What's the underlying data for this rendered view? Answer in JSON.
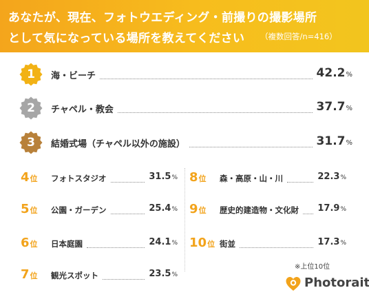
{
  "header": {
    "title_line1": "あなたが、現在、フォトウエディング・前撮りの撮影場所",
    "title_line2": "として気になっている場所を教えてください",
    "subtitle": "（複数回答/n=416）"
  },
  "colors": {
    "header_orange": "#f4a51c",
    "gold": "#f2b215",
    "silver": "#a6a6a6",
    "bronze": "#b8813a",
    "rank_orange": "#f2a31b"
  },
  "rank_position_suffix": "位",
  "percent_sign": "%",
  "chart_data": {
    "type": "table",
    "categories": [
      "海・ビーチ",
      "チャペル・教会",
      "結婚式場（チャペル以外の施設）",
      "フォトスタジオ",
      "公園・ガーデン",
      "日本庭園",
      "観光スポット",
      "森・高原・山・川",
      "歴史的建造物・文化財",
      "街並"
    ],
    "values": [
      42.2,
      37.7,
      31.7,
      31.5,
      25.4,
      24.1,
      23.5,
      22.3,
      17.9,
      17.3
    ],
    "ranks": [
      1,
      2,
      3,
      4,
      5,
      6,
      7,
      8,
      9,
      10
    ]
  },
  "top": [
    {
      "rank": "1",
      "label": "海・ビーチ",
      "value": "42.2",
      "medal": "gold"
    },
    {
      "rank": "2",
      "label": "チャペル・教会",
      "value": "37.7",
      "medal": "silver"
    },
    {
      "rank": "3",
      "label": "結婚式場（チャペル以外の施設）",
      "value": "31.7",
      "medal": "bronze"
    }
  ],
  "left_ranks": [
    {
      "rank": "4",
      "label": "フォトスタジオ",
      "value": "31.5"
    },
    {
      "rank": "5",
      "label": "公園・ガーデン",
      "value": "25.4"
    },
    {
      "rank": "6",
      "label": "日本庭園",
      "value": "24.1"
    },
    {
      "rank": "7",
      "label": "観光スポット",
      "value": "23.5"
    }
  ],
  "right_ranks": [
    {
      "rank": "8",
      "label": "森・高原・山・川",
      "value": "22.3"
    },
    {
      "rank": "9",
      "label": "歴史的建造物・文化財",
      "value": "17.9"
    },
    {
      "rank": "10",
      "label": "街並",
      "value": "17.3"
    }
  ],
  "footnote": "※上位10位",
  "brand": {
    "name": "Photorait",
    "icon": "heart-camera-icon"
  }
}
